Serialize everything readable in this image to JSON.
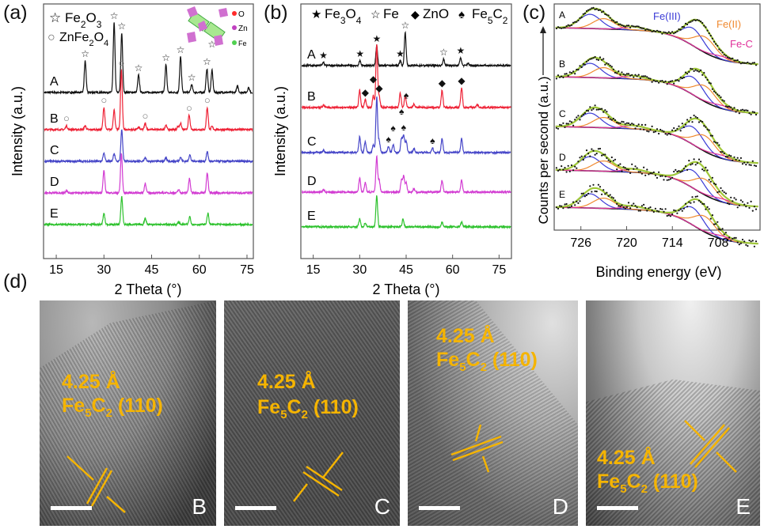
{
  "panels": {
    "a": "(a)",
    "b": "(b)",
    "c": "(c)",
    "d": "(d)"
  },
  "colors": {
    "A": "#111111",
    "B": "#ee2236",
    "C": "#4646c8",
    "D": "#d23cd2",
    "E": "#2ec22e",
    "fe3": "#3b3bd6",
    "fe2": "#f08a30",
    "fec": "#e0309a",
    "fit": "#a0c838",
    "tem_label": "#f5b400"
  },
  "chart_data": [
    {
      "id": "a",
      "type": "line",
      "xlabel": "2 Theta (°)",
      "ylabel": "Intensity (a.u.)",
      "xticks": [
        15,
        30,
        45,
        60,
        75
      ],
      "xlim": [
        11,
        77
      ],
      "grid": false,
      "legend": [
        {
          "symbol": "open-star",
          "label": "Fe2O3"
        },
        {
          "symbol": "open-circle",
          "label": "ZnFe2O4"
        }
      ],
      "inset_legend": [
        {
          "label": "O",
          "color": "#ff2a2a"
        },
        {
          "label": "Zn",
          "color": "#c040c0"
        },
        {
          "label": "Fe",
          "color": "#50d050"
        }
      ],
      "series": [
        {
          "name": "A",
          "peaks": [
            [
              24.1,
              40
            ],
            [
              33.2,
              88
            ],
            [
              35.6,
              75
            ],
            [
              40.9,
              22
            ],
            [
              49.5,
              35
            ],
            [
              54.1,
              45
            ],
            [
              57.6,
              10
            ],
            [
              62.4,
              30
            ],
            [
              64.0,
              28
            ],
            [
              72.0,
              8
            ],
            [
              75.5,
              6
            ]
          ],
          "markers": [
            [
              24.1,
              "open-star"
            ],
            [
              33.2,
              "open-star"
            ],
            [
              35.6,
              "open-star"
            ],
            [
              40.9,
              "open-star"
            ],
            [
              49.5,
              "open-star"
            ],
            [
              54.1,
              "open-star"
            ],
            [
              57.6,
              "open-star"
            ],
            [
              62.4,
              "open-star"
            ],
            [
              64.0,
              "open-star"
            ]
          ]
        },
        {
          "name": "B",
          "peaks": [
            [
              18.2,
              5
            ],
            [
              24.1,
              5
            ],
            [
              30.0,
              28
            ],
            [
              33.2,
              25
            ],
            [
              35.5,
              75
            ],
            [
              40.9,
              3
            ],
            [
              43.0,
              8
            ],
            [
              49.5,
              6
            ],
            [
              53.3,
              4
            ],
            [
              54.1,
              8
            ],
            [
              56.8,
              18
            ],
            [
              62.5,
              28
            ],
            [
              64.0,
              4
            ]
          ],
          "markers": [
            [
              18.2,
              "open-circle"
            ],
            [
              30.0,
              "open-circle"
            ],
            [
              35.5,
              "open-circle"
            ],
            [
              43.0,
              "open-circle"
            ],
            [
              56.8,
              "open-circle"
            ],
            [
              62.5,
              "open-circle"
            ]
          ]
        },
        {
          "name": "C",
          "peaks": [
            [
              30.0,
              10
            ],
            [
              33.2,
              10
            ],
            [
              35.6,
              40
            ],
            [
              43.0,
              5
            ],
            [
              49.5,
              4
            ],
            [
              54.1,
              5
            ],
            [
              57.0,
              8
            ],
            [
              62.5,
              12
            ]
          ],
          "markers": []
        },
        {
          "name": "D",
          "peaks": [
            [
              18.2,
              3
            ],
            [
              30.0,
              28
            ],
            [
              35.5,
              50
            ],
            [
              43.0,
              12
            ],
            [
              53.5,
              4
            ],
            [
              56.9,
              18
            ],
            [
              62.5,
              25
            ]
          ],
          "markers": []
        },
        {
          "name": "E",
          "peaks": [
            [
              30.0,
              14
            ],
            [
              35.6,
              35
            ],
            [
              43.0,
              8
            ],
            [
              53.5,
              3
            ],
            [
              57.0,
              10
            ],
            [
              62.7,
              14
            ]
          ],
          "markers": []
        }
      ]
    },
    {
      "id": "b",
      "type": "line",
      "xlabel": "2 Theta (°)",
      "ylabel": "Intensity (a.u.)",
      "xticks": [
        15,
        30,
        45,
        60,
        75
      ],
      "xlim": [
        11,
        79
      ],
      "grid": false,
      "legend": [
        {
          "symbol": "filled-star",
          "label": "Fe3O4"
        },
        {
          "symbol": "open-star",
          "label": "Fe"
        },
        {
          "symbol": "diamond",
          "label": "ZnO"
        },
        {
          "symbol": "spade",
          "label": "Fe5C2"
        }
      ],
      "series": [
        {
          "name": "A",
          "peaks": [
            [
              18.3,
              4
            ],
            [
              30.1,
              6
            ],
            [
              35.5,
              25
            ],
            [
              43.1,
              6
            ],
            [
              44.7,
              42
            ],
            [
              57.1,
              8
            ],
            [
              62.6,
              10
            ],
            [
              65.0,
              3
            ]
          ],
          "markers": [
            [
              18.3,
              "filled-star"
            ],
            [
              30.1,
              "filled-star"
            ],
            [
              35.5,
              "filled-star"
            ],
            [
              43.1,
              "filled-star"
            ],
            [
              44.7,
              "open-star"
            ],
            [
              57.1,
              "open-star"
            ],
            [
              62.6,
              "filled-star"
            ]
          ]
        },
        {
          "name": "B",
          "peaks": [
            [
              18.3,
              3
            ],
            [
              30.0,
              22
            ],
            [
              31.8,
              10
            ],
            [
              34.4,
              15
            ],
            [
              35.5,
              80
            ],
            [
              36.3,
              14
            ],
            [
              43.1,
              18
            ],
            [
              44.7,
              15
            ],
            [
              47.5,
              4
            ],
            [
              56.6,
              22
            ],
            [
              62.9,
              25
            ],
            [
              68.0,
              4
            ]
          ],
          "markers": [
            [
              31.8,
              "diamond"
            ],
            [
              34.4,
              "diamond"
            ],
            [
              36.3,
              "diamond"
            ],
            [
              56.6,
              "diamond"
            ],
            [
              62.9,
              "diamond"
            ]
          ]
        },
        {
          "name": "C",
          "peaks": [
            [
              18.3,
              3
            ],
            [
              30.0,
              20
            ],
            [
              31.8,
              14
            ],
            [
              34.4,
              10
            ],
            [
              35.5,
              70
            ],
            [
              36.3,
              15
            ],
            [
              39.3,
              8
            ],
            [
              40.8,
              10
            ],
            [
              43.5,
              18
            ],
            [
              44.2,
              22
            ],
            [
              45.0,
              15
            ],
            [
              47.5,
              5
            ],
            [
              53.5,
              6
            ],
            [
              56.6,
              18
            ],
            [
              62.9,
              18
            ]
          ],
          "markers": [
            [
              39.3,
              "spade"
            ],
            [
              40.8,
              "spade"
            ],
            [
              43.5,
              "spade"
            ],
            [
              44.2,
              "spade"
            ],
            [
              45.0,
              "spade"
            ],
            [
              53.5,
              "spade"
            ]
          ]
        },
        {
          "name": "D",
          "peaks": [
            [
              18.3,
              3
            ],
            [
              30.0,
              18
            ],
            [
              31.8,
              12
            ],
            [
              35.5,
              45
            ],
            [
              36.3,
              15
            ],
            [
              43.5,
              15
            ],
            [
              44.2,
              20
            ],
            [
              45.0,
              12
            ],
            [
              47.5,
              4
            ],
            [
              56.6,
              15
            ],
            [
              62.9,
              15
            ]
          ],
          "markers": []
        },
        {
          "name": "E",
          "peaks": [
            [
              30.0,
              10
            ],
            [
              31.8,
              5
            ],
            [
              35.5,
              40
            ],
            [
              44.0,
              10
            ],
            [
              56.6,
              6
            ],
            [
              62.9,
              6
            ]
          ],
          "markers": []
        }
      ]
    },
    {
      "id": "c",
      "type": "line",
      "xlabel": "Binding energy (eV)",
      "ylabel": "Counts per second (a.u.)",
      "xticks": [
        726,
        720,
        714,
        708
      ],
      "xlim": [
        729.5,
        702.5
      ],
      "reversed_x": true,
      "grid": false,
      "components": [
        {
          "key": "fe3",
          "label": "Fe(III)",
          "centers": [
            711.3,
            724.8
          ],
          "heights": [
            22,
            18
          ]
        },
        {
          "key": "fe2",
          "label": "Fe(II)",
          "centers": [
            709.7,
            723.0
          ],
          "heights": [
            20,
            13
          ]
        },
        {
          "key": "fec",
          "label": "Fe-C",
          "centers": [
            707.5,
            719.0
          ],
          "heights": [
            4,
            4
          ]
        }
      ],
      "series": [
        {
          "name": "A"
        },
        {
          "name": "B"
        },
        {
          "name": "C"
        },
        {
          "name": "D"
        },
        {
          "name": "E"
        }
      ]
    }
  ],
  "tem": [
    {
      "id": "B",
      "spacing": "4.25 Å",
      "phase": "Fe5C2 (110)",
      "letter": "B"
    },
    {
      "id": "C",
      "spacing": "4.25 Å",
      "phase": "Fe5C2 (110)",
      "letter": "C"
    },
    {
      "id": "D",
      "spacing": "4.25 Å",
      "phase": "Fe5C2 (110)",
      "letter": "D"
    },
    {
      "id": "E",
      "spacing": "4.25 Å",
      "phase": "Fe5C2 (110)",
      "letter": "E"
    }
  ]
}
